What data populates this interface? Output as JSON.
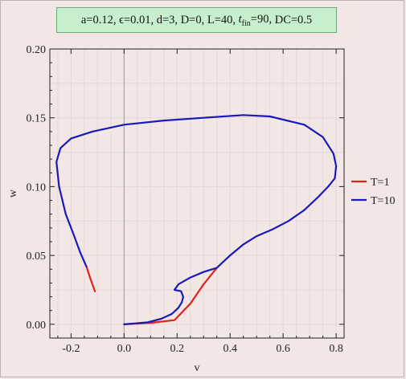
{
  "params_box": {
    "a": "a=0.12,",
    "eps": "ϵ=0.01,",
    "d": "d=3,",
    "D": "D=0,",
    "L": "L=40,",
    "tfin_prefix": "t",
    "tfin_sub": "fin",
    "tfin_value": "=90,",
    "DC": "DC=0.5"
  },
  "colors": {
    "T1": "#e3211c",
    "T10": "#1a1ab8",
    "grid": "#e4d9d7",
    "axis": "#9a9a9a",
    "frame": "#222222"
  },
  "chart_data": {
    "type": "line",
    "xlabel": "v",
    "ylabel": "w",
    "xlim": [
      -0.28,
      0.83
    ],
    "ylim": [
      -0.01,
      0.2
    ],
    "x_ticks": [
      -0.2,
      0.0,
      0.2,
      0.4,
      0.6,
      0.8
    ],
    "x_tick_labels": [
      "-0.2",
      "0.0",
      "0.2",
      "0.4",
      "0.6",
      "0.8"
    ],
    "y_ticks": [
      0.0,
      0.05,
      0.1,
      0.15,
      0.2
    ],
    "y_tick_labels": [
      "0.00",
      "0.05",
      "0.10",
      "0.15",
      "0.20"
    ],
    "grid": true,
    "legend_position": "right",
    "series": [
      {
        "name": "T=1",
        "color": "#e3211c",
        "segments": [
          [
            [
              -0.11,
              0.024
            ],
            [
              -0.125,
              0.032
            ],
            [
              -0.142,
              0.042
            ]
          ],
          [
            [
              0.0,
              0.0
            ],
            [
              0.1,
              0.001
            ],
            [
              0.19,
              0.003
            ],
            [
              0.25,
              0.015
            ],
            [
              0.3,
              0.029
            ],
            [
              0.35,
              0.041
            ]
          ]
        ]
      },
      {
        "name": "T=10",
        "color": "#1a1ab8",
        "segments": [
          [
            [
              0.0,
              0.0
            ],
            [
              0.04,
              0.0006
            ],
            [
              0.09,
              0.0015
            ],
            [
              0.14,
              0.004
            ],
            [
              0.18,
              0.0075
            ],
            [
              0.205,
              0.012
            ],
            [
              0.218,
              0.016
            ],
            [
              0.223,
              0.02
            ],
            [
              0.215,
              0.024
            ],
            [
              0.19,
              0.025
            ],
            [
              0.205,
              0.029
            ],
            [
              0.25,
              0.034
            ],
            [
              0.3,
              0.038
            ],
            [
              0.35,
              0.041
            ],
            [
              0.4,
              0.05
            ],
            [
              0.45,
              0.058
            ],
            [
              0.5,
              0.064
            ],
            [
              0.56,
              0.069
            ],
            [
              0.62,
              0.075
            ],
            [
              0.68,
              0.083
            ],
            [
              0.73,
              0.092
            ],
            [
              0.77,
              0.1
            ],
            [
              0.795,
              0.106
            ],
            [
              0.8,
              0.115
            ],
            [
              0.79,
              0.124
            ],
            [
              0.75,
              0.136
            ],
            [
              0.68,
              0.145
            ],
            [
              0.55,
              0.151
            ],
            [
              0.45,
              0.152
            ],
            [
              0.3,
              0.15
            ],
            [
              0.15,
              0.148
            ],
            [
              0.0,
              0.145
            ],
            [
              -0.12,
              0.14
            ],
            [
              -0.2,
              0.135
            ],
            [
              -0.24,
              0.128
            ],
            [
              -0.255,
              0.118
            ],
            [
              -0.245,
              0.1
            ],
            [
              -0.22,
              0.08
            ],
            [
              -0.19,
              0.065
            ],
            [
              -0.165,
              0.052
            ],
            [
              -0.142,
              0.042
            ]
          ]
        ]
      }
    ]
  }
}
